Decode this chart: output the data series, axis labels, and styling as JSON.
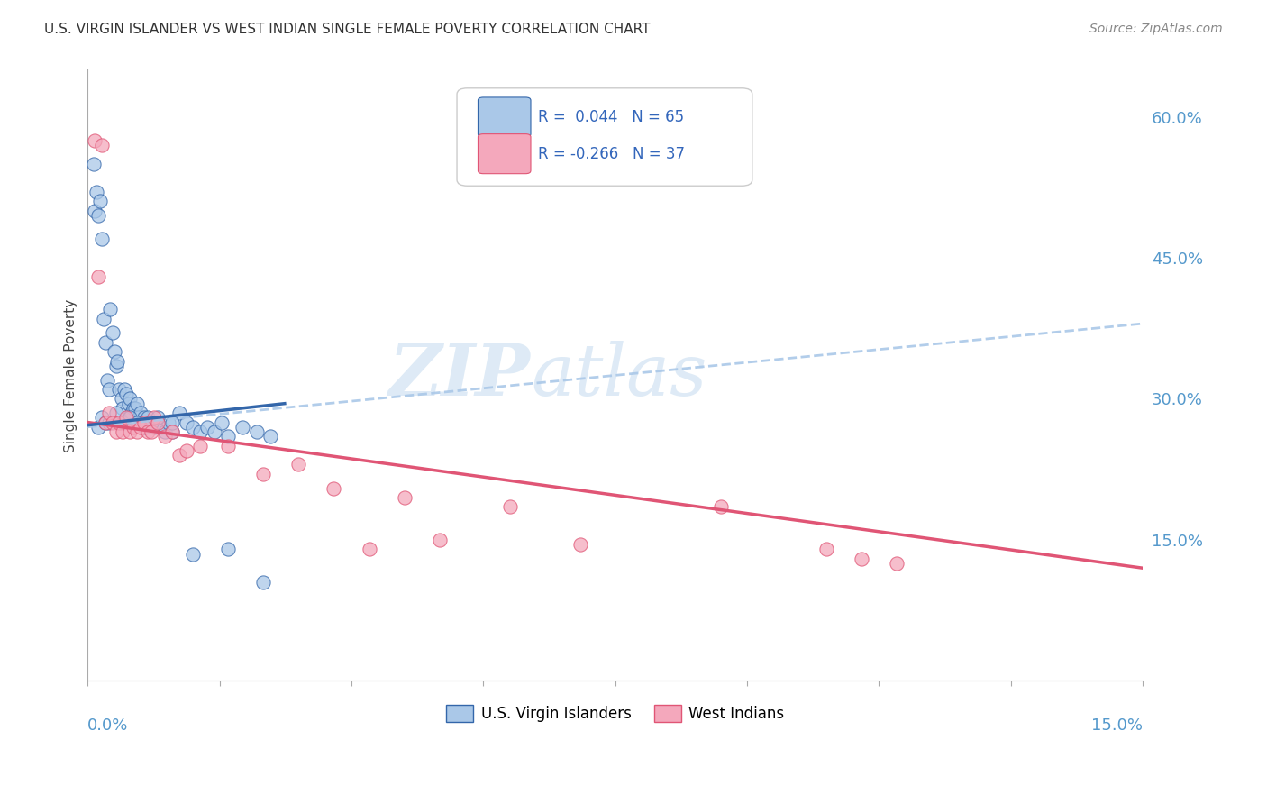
{
  "title": "U.S. VIRGIN ISLANDER VS WEST INDIAN SINGLE FEMALE POVERTY CORRELATION CHART",
  "source": "Source: ZipAtlas.com",
  "ylabel": "Single Female Poverty",
  "xlim": [
    0.0,
    15.0
  ],
  "ylim": [
    0.0,
    65.0
  ],
  "yticks_right": [
    15.0,
    30.0,
    45.0,
    60.0
  ],
  "legend_box": {
    "R1": "0.044",
    "N1": "65",
    "R2": "-0.266",
    "N2": "37"
  },
  "blue_scatter": {
    "x": [
      0.08,
      0.1,
      0.12,
      0.15,
      0.18,
      0.2,
      0.22,
      0.25,
      0.28,
      0.3,
      0.32,
      0.35,
      0.38,
      0.4,
      0.42,
      0.45,
      0.48,
      0.5,
      0.52,
      0.55,
      0.58,
      0.6,
      0.62,
      0.65,
      0.68,
      0.7,
      0.72,
      0.75,
      0.78,
      0.8,
      0.82,
      0.85,
      0.9,
      0.95,
      1.0,
      1.05,
      1.1,
      1.15,
      1.2,
      1.3,
      1.4,
      1.5,
      1.6,
      1.7,
      1.8,
      1.9,
      2.0,
      2.2,
      2.4,
      2.6,
      0.15,
      0.2,
      0.25,
      0.3,
      0.4,
      0.5,
      0.6,
      0.7,
      0.8,
      0.9,
      1.0,
      1.2,
      1.5,
      2.0,
      2.5
    ],
    "y": [
      55.0,
      50.0,
      52.0,
      49.5,
      51.0,
      47.0,
      38.5,
      36.0,
      32.0,
      31.0,
      39.5,
      37.0,
      35.0,
      33.5,
      34.0,
      31.0,
      30.0,
      29.0,
      31.0,
      30.5,
      29.5,
      30.0,
      28.5,
      29.0,
      29.0,
      29.5,
      28.0,
      28.5,
      27.5,
      28.0,
      27.0,
      28.0,
      27.5,
      27.0,
      27.5,
      27.0,
      26.5,
      27.5,
      26.5,
      28.5,
      27.5,
      27.0,
      26.5,
      27.0,
      26.5,
      27.5,
      26.0,
      27.0,
      26.5,
      26.0,
      27.0,
      28.0,
      27.5,
      27.5,
      28.5,
      27.5,
      28.0,
      27.5,
      27.0,
      27.5,
      28.0,
      27.5,
      13.5,
      14.0,
      10.5
    ]
  },
  "pink_scatter": {
    "x": [
      0.1,
      0.15,
      0.2,
      0.25,
      0.3,
      0.35,
      0.4,
      0.45,
      0.5,
      0.55,
      0.6,
      0.65,
      0.7,
      0.75,
      0.8,
      0.85,
      0.9,
      0.95,
      1.0,
      1.1,
      1.2,
      1.3,
      1.4,
      1.6,
      2.0,
      2.5,
      3.0,
      3.5,
      4.0,
      4.5,
      5.0,
      6.0,
      7.0,
      9.0,
      10.5,
      11.0,
      11.5
    ],
    "y": [
      57.5,
      43.0,
      57.0,
      27.5,
      28.5,
      27.5,
      26.5,
      27.5,
      26.5,
      28.0,
      26.5,
      27.0,
      26.5,
      27.0,
      27.5,
      26.5,
      26.5,
      28.0,
      27.5,
      26.0,
      26.5,
      24.0,
      24.5,
      25.0,
      25.0,
      22.0,
      23.0,
      20.5,
      14.0,
      19.5,
      15.0,
      18.5,
      14.5,
      18.5,
      14.0,
      13.0,
      12.5
    ]
  },
  "blue_color": "#aac8e8",
  "pink_color": "#f4a8bc",
  "blue_line_color": "#3366aa",
  "pink_line_color": "#e05575",
  "dashed_line_color": "#aac8e8",
  "watermark_zip": "ZIP",
  "watermark_atlas": "atlas",
  "background_color": "#ffffff",
  "grid_color": "#dddddd",
  "blue_regression": [
    27.2,
    0.52
  ],
  "dashed_regression": [
    27.2,
    0.8
  ],
  "pink_regression": [
    27.5,
    -1.02
  ]
}
